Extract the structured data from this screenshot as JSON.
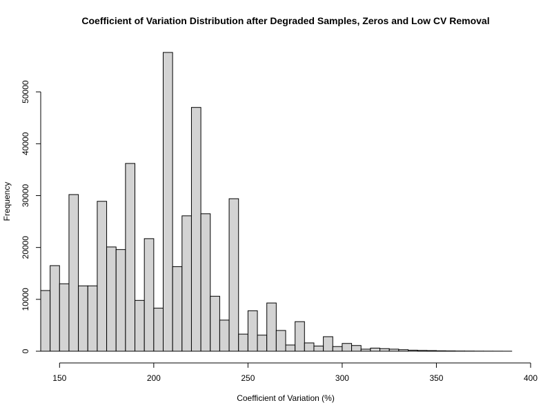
{
  "chart_data": {
    "type": "bar",
    "title": "Coefficient of Variation Distribution after Degraded Samples, Zeros and Low CV Removal",
    "xlabel": "Coefficient of Variation (%)",
    "ylabel": "Frequency",
    "bar_color": "#d3d3d3",
    "bar_border_color": "#000000",
    "bin_width": 5,
    "bin_starts": [
      140,
      145,
      150,
      155,
      160,
      165,
      170,
      175,
      180,
      185,
      190,
      195,
      200,
      205,
      210,
      215,
      220,
      225,
      230,
      235,
      240,
      245,
      250,
      255,
      260,
      265,
      270,
      275,
      280,
      285,
      290,
      295,
      300,
      305,
      310,
      315,
      320,
      325,
      330,
      335,
      340,
      345,
      350,
      355,
      360,
      365,
      370,
      375,
      380,
      385
    ],
    "values": [
      11700,
      16500,
      13000,
      30200,
      12600,
      12600,
      28900,
      20100,
      19600,
      36200,
      9800,
      21700,
      8300,
      57600,
      16300,
      26100,
      47000,
      26500,
      10600,
      6000,
      29400,
      3300,
      7800,
      3100,
      9300,
      4000,
      1200,
      5700,
      1600,
      1000,
      2800,
      900,
      1500,
      1100,
      400,
      600,
      500,
      400,
      300,
      200,
      150,
      120,
      80,
      60,
      40,
      30,
      20,
      15,
      10,
      5
    ],
    "xlim": [
      140,
      390
    ],
    "ylim": [
      0,
      57600
    ],
    "x_ticks": [
      150,
      200,
      250,
      300,
      350,
      400
    ],
    "y_ticks": [
      0,
      10000,
      20000,
      30000,
      40000,
      50000
    ],
    "grid": false,
    "legend": false
  }
}
